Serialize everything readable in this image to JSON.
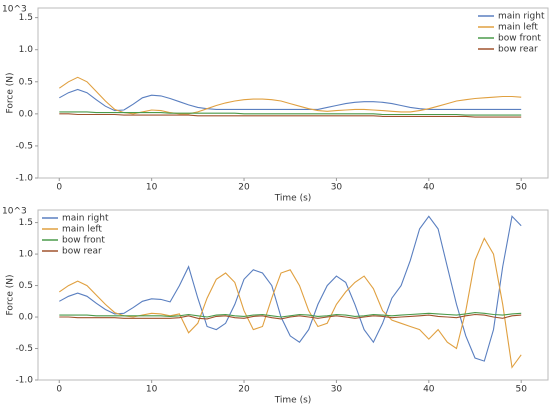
{
  "chart_data": [
    {
      "type": "line",
      "y_multiplier": "10^3",
      "xlabel": "Time (s)",
      "ylabel": "Force (N)",
      "legend": "upper right",
      "xlim": [
        -2.3,
        52.9
      ],
      "ylim": [
        -1.0,
        1.65
      ],
      "xticks": [
        0,
        10,
        20,
        30,
        40,
        50
      ],
      "yticks": [
        {
          "value": -1.0,
          "label": "-1.0"
        },
        -0.5,
        {
          "value": 0.0,
          "label": "0.0"
        },
        0.5,
        {
          "value": 1.0,
          "label": "1.0"
        },
        1.5
      ],
      "x": [
        0,
        1,
        2,
        3,
        4,
        5,
        6,
        7,
        8,
        9,
        10,
        11,
        12,
        13,
        14,
        15,
        16,
        17,
        18,
        19,
        20,
        21,
        22,
        23,
        24,
        25,
        26,
        27,
        28,
        29,
        30,
        31,
        32,
        33,
        34,
        35,
        36,
        37,
        38,
        39,
        40,
        41,
        42,
        43,
        44,
        45,
        46,
        47,
        48,
        49,
        50
      ],
      "series": [
        {
          "name": "main right",
          "color": "#5a7fc0",
          "values": [
            0.25,
            0.33,
            0.38,
            0.33,
            0.22,
            0.12,
            0.05,
            0.06,
            0.15,
            0.25,
            0.29,
            0.28,
            0.24,
            0.19,
            0.14,
            0.1,
            0.08,
            0.07,
            0.07,
            0.07,
            0.07,
            0.07,
            0.07,
            0.07,
            0.07,
            0.07,
            0.07,
            0.07,
            0.07,
            0.1,
            0.13,
            0.16,
            0.18,
            0.19,
            0.19,
            0.18,
            0.16,
            0.13,
            0.1,
            0.08,
            0.07,
            0.07,
            0.07,
            0.07,
            0.07,
            0.07,
            0.07,
            0.07,
            0.07,
            0.07,
            0.07
          ]
        },
        {
          "name": "main left",
          "color": "#e0a040",
          "values": [
            0.4,
            0.5,
            0.57,
            0.5,
            0.35,
            0.2,
            0.07,
            0.02,
            0.0,
            0.03,
            0.06,
            0.05,
            0.02,
            0.0,
            0.0,
            0.03,
            0.08,
            0.13,
            0.17,
            0.2,
            0.22,
            0.23,
            0.23,
            0.22,
            0.2,
            0.16,
            0.12,
            0.08,
            0.05,
            0.04,
            0.05,
            0.06,
            0.07,
            0.07,
            0.06,
            0.05,
            0.04,
            0.03,
            0.03,
            0.05,
            0.08,
            0.12,
            0.16,
            0.2,
            0.22,
            0.24,
            0.25,
            0.26,
            0.27,
            0.27,
            0.26
          ]
        },
        {
          "name": "bow front",
          "color": "#4a9a4a",
          "values": [
            0.03,
            0.03,
            0.03,
            0.03,
            0.02,
            0.02,
            0.02,
            0.02,
            0.02,
            0.02,
            0.02,
            0.02,
            0.01,
            0.01,
            0.01,
            0.01,
            0.01,
            0.01,
            0.01,
            0.01,
            0.0,
            0.0,
            0.0,
            0.0,
            0.0,
            0.0,
            0.0,
            0.0,
            0.0,
            0.0,
            0.0,
            0.0,
            0.0,
            0.0,
            0.0,
            -0.01,
            -0.01,
            -0.01,
            -0.01,
            -0.01,
            -0.01,
            -0.01,
            -0.01,
            -0.01,
            -0.02,
            -0.02,
            -0.02,
            -0.02,
            -0.02,
            -0.02,
            -0.02
          ]
        },
        {
          "name": "bow rear",
          "color": "#a0522d",
          "values": [
            0.0,
            0.0,
            -0.01,
            -0.01,
            -0.01,
            -0.01,
            -0.01,
            -0.02,
            -0.02,
            -0.02,
            -0.02,
            -0.02,
            -0.02,
            -0.02,
            -0.02,
            -0.03,
            -0.03,
            -0.03,
            -0.03,
            -0.03,
            -0.03,
            -0.03,
            -0.03,
            -0.03,
            -0.03,
            -0.03,
            -0.03,
            -0.03,
            -0.03,
            -0.03,
            -0.03,
            -0.03,
            -0.03,
            -0.03,
            -0.03,
            -0.04,
            -0.04,
            -0.04,
            -0.04,
            -0.04,
            -0.04,
            -0.04,
            -0.04,
            -0.04,
            -0.04,
            -0.05,
            -0.05,
            -0.05,
            -0.05,
            -0.05,
            -0.05
          ]
        }
      ]
    },
    {
      "type": "line",
      "y_multiplier": "10^3",
      "xlabel": "Time (s)",
      "ylabel": "Force (N)",
      "legend": "upper left",
      "xlim": [
        -2.3,
        52.9
      ],
      "ylim": [
        -1.0,
        1.7
      ],
      "xticks": [
        0,
        10,
        20,
        30,
        40,
        50
      ],
      "yticks": [
        {
          "value": -1.0,
          "label": "-1.0"
        },
        -0.5,
        {
          "value": 0.0,
          "label": "0.0"
        },
        0.5,
        {
          "value": 1.0,
          "label": "1.0"
        },
        1.5
      ],
      "x": [
        0,
        1,
        2,
        3,
        4,
        5,
        6,
        7,
        8,
        9,
        10,
        11,
        12,
        13,
        14,
        15,
        16,
        17,
        18,
        19,
        20,
        21,
        22,
        23,
        24,
        25,
        26,
        27,
        28,
        29,
        30,
        31,
        32,
        33,
        34,
        35,
        36,
        37,
        38,
        39,
        40,
        41,
        42,
        43,
        44,
        45,
        46,
        47,
        48,
        49,
        50
      ],
      "series": [
        {
          "name": "main right",
          "color": "#5a7fc0",
          "values": [
            0.25,
            0.33,
            0.38,
            0.33,
            0.22,
            0.12,
            0.05,
            0.06,
            0.15,
            0.25,
            0.29,
            0.28,
            0.24,
            0.5,
            0.8,
            0.3,
            -0.15,
            -0.2,
            -0.1,
            0.2,
            0.6,
            0.75,
            0.7,
            0.5,
            0.0,
            -0.3,
            -0.4,
            -0.2,
            0.2,
            0.5,
            0.65,
            0.55,
            0.2,
            -0.2,
            -0.4,
            -0.1,
            0.3,
            0.5,
            0.9,
            1.4,
            1.6,
            1.4,
            0.8,
            0.2,
            -0.3,
            -0.65,
            -0.7,
            -0.2,
            0.8,
            1.6,
            1.45
          ]
        },
        {
          "name": "main left",
          "color": "#e0a040",
          "values": [
            0.4,
            0.5,
            0.57,
            0.5,
            0.35,
            0.2,
            0.07,
            0.02,
            0.0,
            0.03,
            0.06,
            0.05,
            0.02,
            0.05,
            -0.25,
            -0.1,
            0.3,
            0.6,
            0.7,
            0.55,
            0.1,
            -0.2,
            -0.15,
            0.3,
            0.7,
            0.75,
            0.5,
            0.1,
            -0.15,
            -0.1,
            0.2,
            0.4,
            0.55,
            0.65,
            0.45,
            0.1,
            -0.05,
            -0.1,
            -0.15,
            -0.2,
            -0.35,
            -0.2,
            -0.4,
            -0.5,
            0.1,
            0.9,
            1.25,
            1.0,
            0.2,
            -0.8,
            -0.6
          ]
        },
        {
          "name": "bow front",
          "color": "#4a9a4a",
          "values": [
            0.03,
            0.03,
            0.03,
            0.03,
            0.02,
            0.02,
            0.02,
            0.02,
            0.02,
            0.02,
            0.02,
            0.02,
            0.01,
            0.02,
            0.04,
            0.02,
            0.0,
            0.03,
            0.04,
            0.02,
            0.01,
            0.03,
            0.04,
            0.02,
            0.0,
            0.02,
            0.04,
            0.03,
            0.01,
            0.02,
            0.04,
            0.03,
            0.01,
            0.02,
            0.04,
            0.03,
            0.02,
            0.03,
            0.04,
            0.05,
            0.06,
            0.05,
            0.04,
            0.03,
            0.05,
            0.07,
            0.06,
            0.04,
            0.03,
            0.05,
            0.06
          ]
        },
        {
          "name": "bow rear",
          "color": "#a0522d",
          "values": [
            0.0,
            0.0,
            -0.01,
            -0.01,
            -0.01,
            -0.01,
            -0.01,
            -0.02,
            -0.02,
            -0.02,
            -0.02,
            -0.02,
            -0.02,
            -0.01,
            0.02,
            -0.02,
            -0.03,
            0.01,
            0.02,
            -0.01,
            -0.02,
            0.01,
            0.02,
            -0.01,
            -0.03,
            0.0,
            0.02,
            0.0,
            -0.02,
            0.0,
            0.02,
            0.0,
            -0.02,
            0.0,
            0.02,
            0.01,
            -0.01,
            0.0,
            0.01,
            0.02,
            0.03,
            0.01,
            0.0,
            -0.01,
            0.02,
            0.04,
            0.03,
            0.0,
            -0.02,
            0.02,
            0.03
          ]
        }
      ]
    }
  ]
}
